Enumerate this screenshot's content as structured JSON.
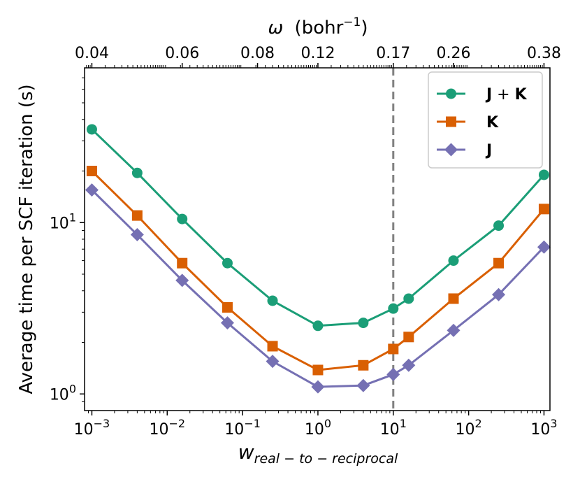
{
  "chart_data": {
    "type": "line",
    "x_scale": "log",
    "y_scale": "log",
    "xlim": [
      0.0008,
      1200
    ],
    "ylim": [
      0.8,
      80
    ],
    "xlabel_main": "w",
    "xlabel_sub": "real − to − reciprocal",
    "ylabel": "Average time per SCF iteration (s)",
    "top_axis": {
      "label_symbol": "ω",
      "label_text": "(bohr",
      "label_sup": "−1",
      "label_close": ")",
      "ticks": [
        {
          "x": 0.001,
          "label": "0.04"
        },
        {
          "x": 0.0158,
          "label": "0.06"
        },
        {
          "x": 0.158,
          "label": "0.08"
        },
        {
          "x": 1,
          "label": "0.12"
        },
        {
          "x": 10,
          "label": "0.17"
        },
        {
          "x": 63,
          "label": "0.26"
        },
        {
          "x": 1000,
          "label": "0.38"
        }
      ]
    },
    "x_ticks": [
      {
        "x": 0.001,
        "base": "10",
        "exp": "−3"
      },
      {
        "x": 0.01,
        "base": "10",
        "exp": "−2"
      },
      {
        "x": 0.1,
        "base": "10",
        "exp": "−1"
      },
      {
        "x": 1,
        "base": "10",
        "exp": "0"
      },
      {
        "x": 10,
        "base": "10",
        "exp": "1"
      },
      {
        "x": 100,
        "base": "10",
        "exp": "2"
      },
      {
        "x": 1000,
        "base": "10",
        "exp": "3"
      }
    ],
    "y_ticks": [
      {
        "y": 1,
        "base": "10",
        "exp": "0"
      },
      {
        "y": 10,
        "base": "10",
        "exp": "1"
      }
    ],
    "vline_x": 10,
    "x": [
      0.001,
      0.004,
      0.0158,
      0.063,
      0.25,
      1,
      4,
      10,
      16,
      63,
      250,
      1000
    ],
    "series": [
      {
        "name": "J + K",
        "color": "#1b9e77",
        "marker": "circle",
        "values": [
          35,
          19.5,
          10.5,
          5.8,
          3.5,
          2.5,
          2.6,
          3.15,
          3.6,
          6.0,
          9.6,
          19
        ]
      },
      {
        "name": "K",
        "color": "#d95f02",
        "marker": "square",
        "values": [
          20,
          11,
          5.8,
          3.2,
          1.9,
          1.38,
          1.47,
          1.83,
          2.15,
          3.6,
          5.8,
          12
        ]
      },
      {
        "name": "J",
        "color": "#7570b3",
        "marker": "diamond",
        "values": [
          15.5,
          8.5,
          4.6,
          2.6,
          1.55,
          1.1,
          1.12,
          1.3,
          1.47,
          2.35,
          3.8,
          7.2
        ]
      }
    ],
    "legend": {
      "position": "top-right",
      "entries": [
        {
          "bold": "J",
          "op": " + ",
          "bold2": "K"
        },
        {
          "bold": "K",
          "op": "",
          "bold2": ""
        },
        {
          "bold": "J",
          "op": "",
          "bold2": ""
        }
      ]
    }
  }
}
